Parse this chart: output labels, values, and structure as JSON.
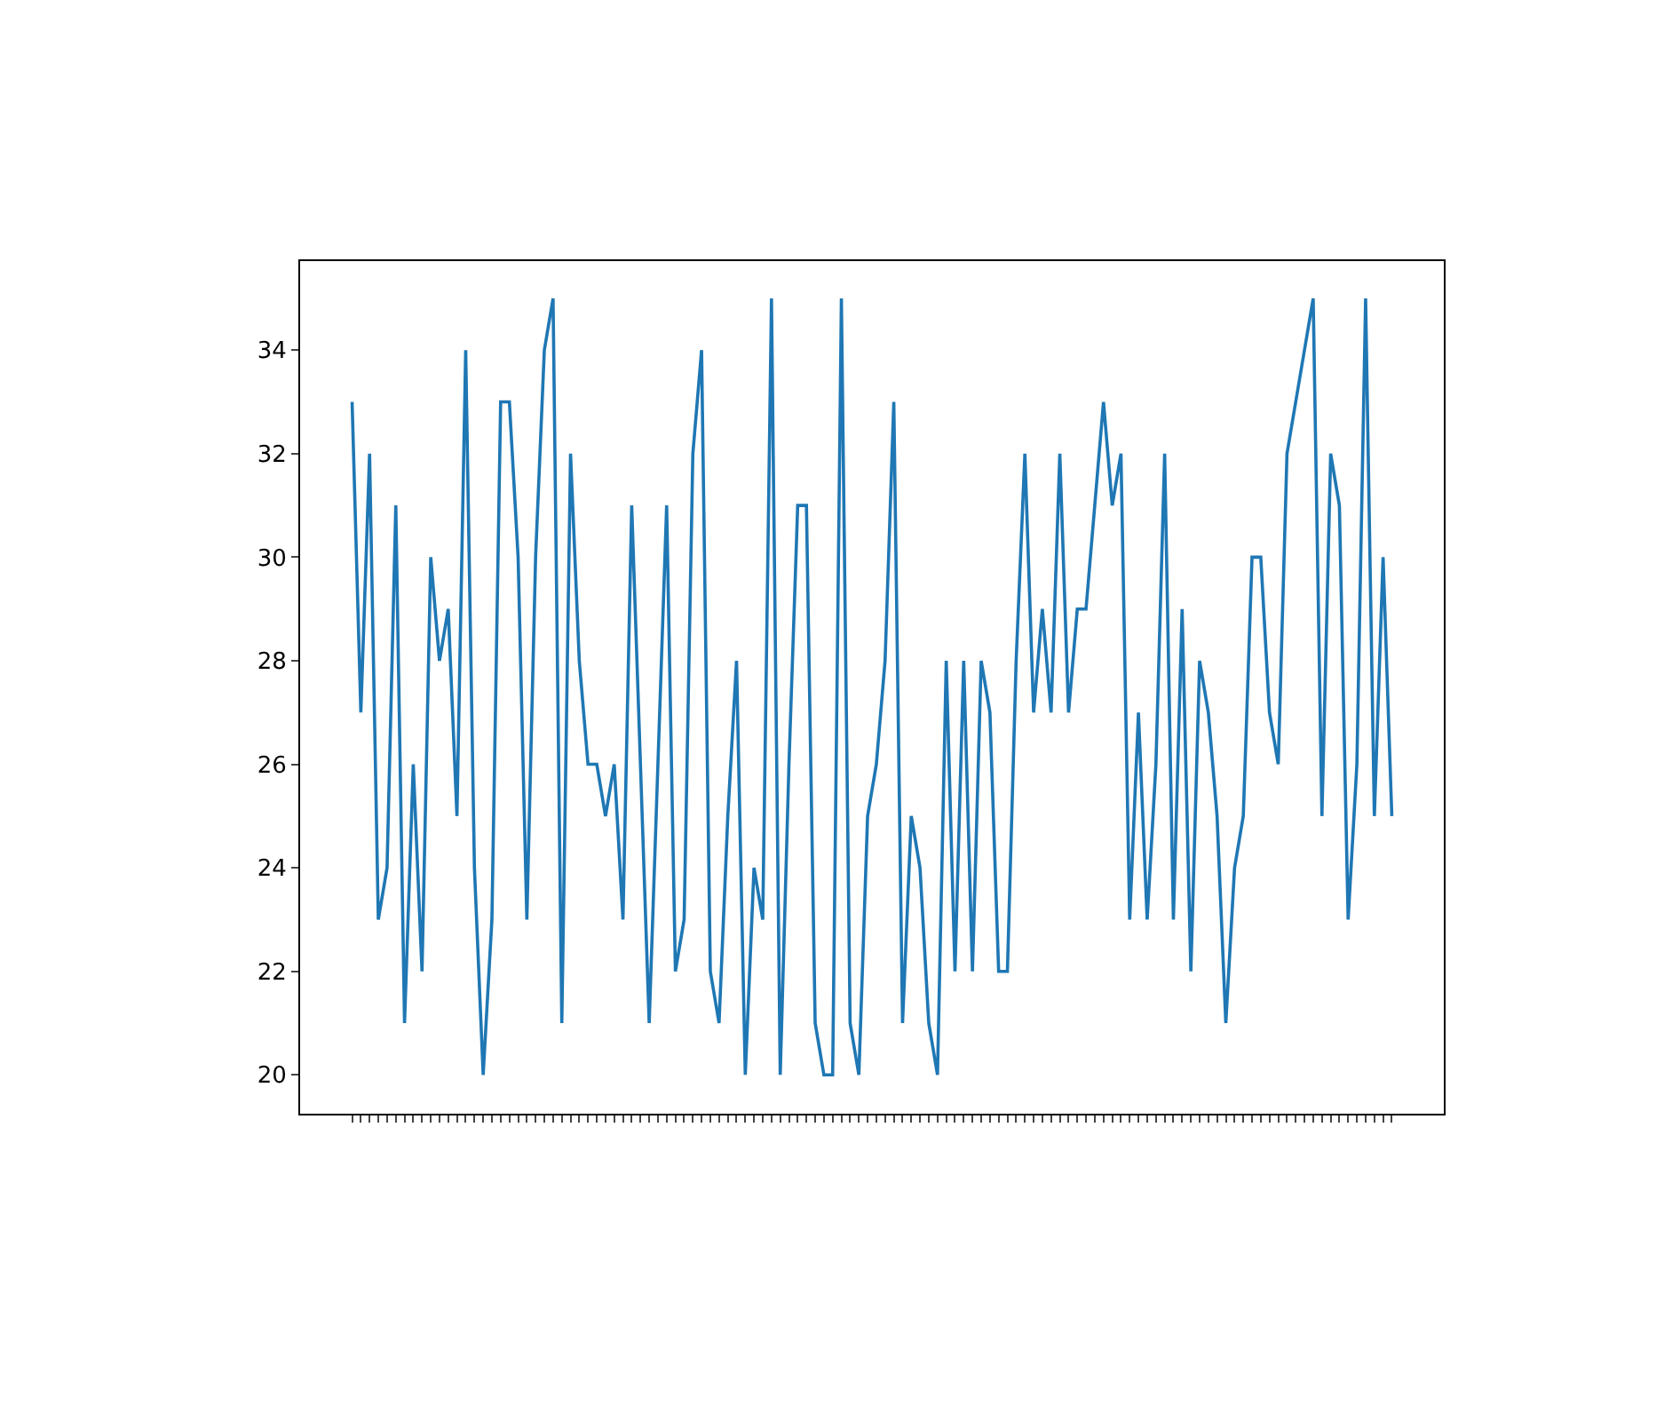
{
  "chart_data": {
    "type": "line",
    "categories": [
      null,
      null,
      null,
      null,
      null,
      null,
      null,
      null,
      null,
      null,
      null,
      null,
      null,
      null,
      null,
      null,
      null,
      null,
      null,
      null,
      null,
      null,
      null,
      null,
      null,
      null,
      null,
      null,
      null,
      null,
      null,
      null,
      null,
      null,
      null,
      null,
      null,
      null,
      null,
      null,
      null,
      null,
      null,
      null,
      null,
      null,
      null,
      null,
      null,
      null,
      null,
      null,
      null,
      null,
      null,
      null,
      null,
      null,
      null,
      null,
      null,
      null,
      null,
      null,
      null,
      null,
      null,
      null,
      null,
      null,
      null,
      null,
      null,
      null,
      null,
      null,
      null,
      null,
      null,
      null,
      null,
      null,
      null,
      null,
      null,
      null,
      null,
      null,
      null,
      null,
      null,
      null,
      null,
      null,
      null,
      null,
      null,
      null,
      null,
      null,
      null,
      null,
      null,
      null,
      null,
      null,
      null,
      null,
      null,
      null,
      null,
      null,
      null,
      null,
      null,
      null,
      null,
      null,
      null,
      null
    ],
    "series": [
      {
        "color": "#1f77b4",
        "values": [
          33,
          27,
          32,
          23,
          24,
          31,
          21,
          26,
          22,
          30,
          28,
          29,
          25,
          34,
          24,
          20,
          23,
          33,
          33,
          30,
          23,
          30,
          34,
          35,
          21,
          32,
          28,
          26,
          26,
          25,
          26,
          23,
          31,
          26,
          21,
          26,
          31,
          22,
          23,
          32,
          34,
          22,
          21,
          25,
          28,
          20,
          24,
          23,
          35,
          20,
          26,
          31,
          31,
          21,
          20,
          20,
          35,
          21,
          20,
          25,
          26,
          28,
          33,
          21,
          25,
          24,
          21,
          20,
          28,
          22,
          28,
          22,
          28,
          27,
          22,
          22,
          28,
          32,
          27,
          29,
          27,
          32,
          27,
          29,
          29,
          31,
          33,
          31,
          32,
          23,
          27,
          23,
          26,
          32,
          23,
          29,
          22,
          28,
          27,
          25,
          21,
          24,
          25,
          30,
          30,
          27,
          26,
          32,
          33,
          34,
          35,
          25,
          32,
          31,
          23,
          26,
          35,
          25,
          30,
          25
        ]
      }
    ],
    "ylim": [
      19.25,
      35.72
    ],
    "yticks": [
      20,
      22,
      24,
      26,
      28,
      30,
      32,
      34
    ],
    "marker": "none",
    "line_style": "solid"
  }
}
